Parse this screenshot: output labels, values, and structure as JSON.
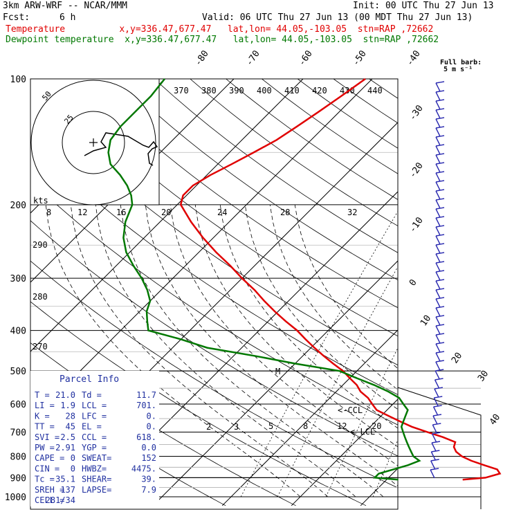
{
  "header": {
    "model": "3km ARW-WRF -- NCAR/MMM",
    "init": "Init: 00 UTC Thu 27 Jun 13",
    "fcst_label": "Fcst:",
    "fcst_value": "6 h",
    "valid": "Valid: 06 UTC Thu 27 Jun 13 (00 MDT Thu 27 Jun 13)",
    "line_temperature": "Temperature          x,y=336.47,677.47   lat,lon= 44.05,-103.05  stn=RAP ,72662",
    "line_dewpoint": "Dewpoint temperature  x,y=336.47,677.47   lat,lon= 44.05,-103.05  stn=RAP ,72662"
  },
  "colors": {
    "temperature": "#e00000",
    "dewpoint": "#007800",
    "barbs": "#2b2bb0",
    "hodograph_trace": "#000000"
  },
  "full_barb": {
    "line1": "Full barb:",
    "line2": "5 m s⁻¹"
  },
  "hodograph": {
    "speed_unit": "kts",
    "ring_labels": [
      "50",
      "25"
    ]
  },
  "parcel_info": {
    "title": "Parcel Info",
    "rows": [
      [
        "T  =",
        "21.0",
        "Td =",
        "11.7"
      ],
      [
        "LI =",
        "1.9",
        "LCL =",
        "701."
      ],
      [
        "K  =",
        "28",
        "LFC =",
        "0."
      ],
      [
        "TT =",
        "45",
        "EL  =",
        "0."
      ],
      [
        "SVI =",
        "2.5",
        "CCL =",
        "618."
      ],
      [
        "PW =",
        "2.91",
        "YGP =",
        "0.0"
      ],
      [
        "CAPE =",
        "0",
        "SWEAT=",
        "152"
      ],
      [
        "CIN =",
        "0",
        "HWBZ=",
        "4475."
      ],
      [
        "Tc =",
        "35.1",
        "SHEAR=",
        "39."
      ],
      [
        "SREH =",
        "137",
        "LAPSE=",
        "7.9"
      ],
      [
        "CELL =",
        "281/34",
        "",
        ""
      ]
    ]
  },
  "ccl_label": "<-CCL",
  "lcl_label": "<-LCL",
  "parcel_marker": "M",
  "chart_data": {
    "type": "line",
    "title": "",
    "xlabel": "",
    "ylabel": "",
    "pressure_levels": [
      "100",
      "200",
      "300",
      "400",
      "500",
      "600",
      "700",
      "800",
      "900",
      "1000"
    ],
    "isotherm_labels": [
      "-80",
      "-70",
      "-60",
      "-50",
      "-40",
      "-30",
      "-20",
      "-10",
      "0",
      "10",
      "20",
      "30",
      "40"
    ],
    "theta_labels": [
      "370",
      "380",
      "390",
      "400",
      "410",
      "420",
      "430",
      "440"
    ],
    "theta_side_labels": [
      "290",
      "280",
      "270"
    ],
    "mixing_ratio_labels": [
      "8",
      "12",
      "16",
      "20",
      "24",
      "28",
      "32"
    ],
    "mixing_ratio_low_labels": [
      "2",
      "3",
      "5",
      "8",
      "12",
      "20"
    ],
    "series": [
      {
        "name": "Temperature",
        "p": [
          910,
          900,
          880,
          860,
          840,
          820,
          800,
          780,
          760,
          740,
          720,
          700,
          680,
          660,
          640,
          620,
          600,
          580,
          560,
          540,
          520,
          500,
          480,
          460,
          440,
          420,
          400,
          380,
          360,
          340,
          320,
          300,
          280,
          260,
          240,
          220,
          200,
          190,
          180,
          170,
          160,
          150,
          140,
          130,
          120,
          110,
          100
        ],
        "t": [
          21.0,
          24.0,
          25.5,
          24.5,
          22.0,
          19.5,
          17.5,
          16.0,
          15.0,
          14.5,
          12.0,
          9.0,
          6.0,
          3.5,
          1.0,
          -1.5,
          -3.0,
          -4.5,
          -6.5,
          -8.0,
          -10.0,
          -12.0,
          -14.5,
          -17.0,
          -19.5,
          -22.0,
          -24.5,
          -27.5,
          -30.5,
          -33.5,
          -36.5,
          -40.0,
          -43.5,
          -47.5,
          -51.5,
          -55.5,
          -59.5,
          -60.5,
          -60.5,
          -59.5,
          -58.0,
          -56.5,
          -55.0,
          -54.0,
          -53.0,
          -52.0,
          -51.0
        ]
      },
      {
        "name": "Dewpoint temperature",
        "p": [
          910,
          900,
          880,
          860,
          840,
          820,
          800,
          780,
          760,
          740,
          720,
          700,
          680,
          660,
          640,
          620,
          600,
          580,
          560,
          540,
          520,
          500,
          480,
          460,
          440,
          420,
          400,
          380,
          360,
          340,
          320,
          300,
          280,
          260,
          240,
          220,
          200,
          190,
          180,
          170,
          160,
          150,
          140,
          130,
          120,
          110,
          100
        ],
        "t": [
          11.7,
          8.0,
          8.0,
          9.5,
          11.0,
          12.0,
          10.5,
          9.5,
          8.5,
          7.5,
          6.5,
          5.5,
          4.5,
          4.0,
          3.5,
          3.0,
          1.5,
          0.0,
          -2.5,
          -5.5,
          -9.0,
          -12.5,
          -20.0,
          -27.0,
          -35.0,
          -40.0,
          -46.0,
          -47.5,
          -49.0,
          -50.0,
          -52.0,
          -54.5,
          -57.5,
          -60.5,
          -63.0,
          -65.0,
          -66.5,
          -68.0,
          -70.0,
          -72.5,
          -75.5,
          -77.5,
          -79.0,
          -79.5,
          -79.5,
          -79.5,
          -80.0
        ]
      }
    ],
    "yscale": "log pressure (hPa)",
    "ylim": [
      1000,
      100
    ]
  }
}
